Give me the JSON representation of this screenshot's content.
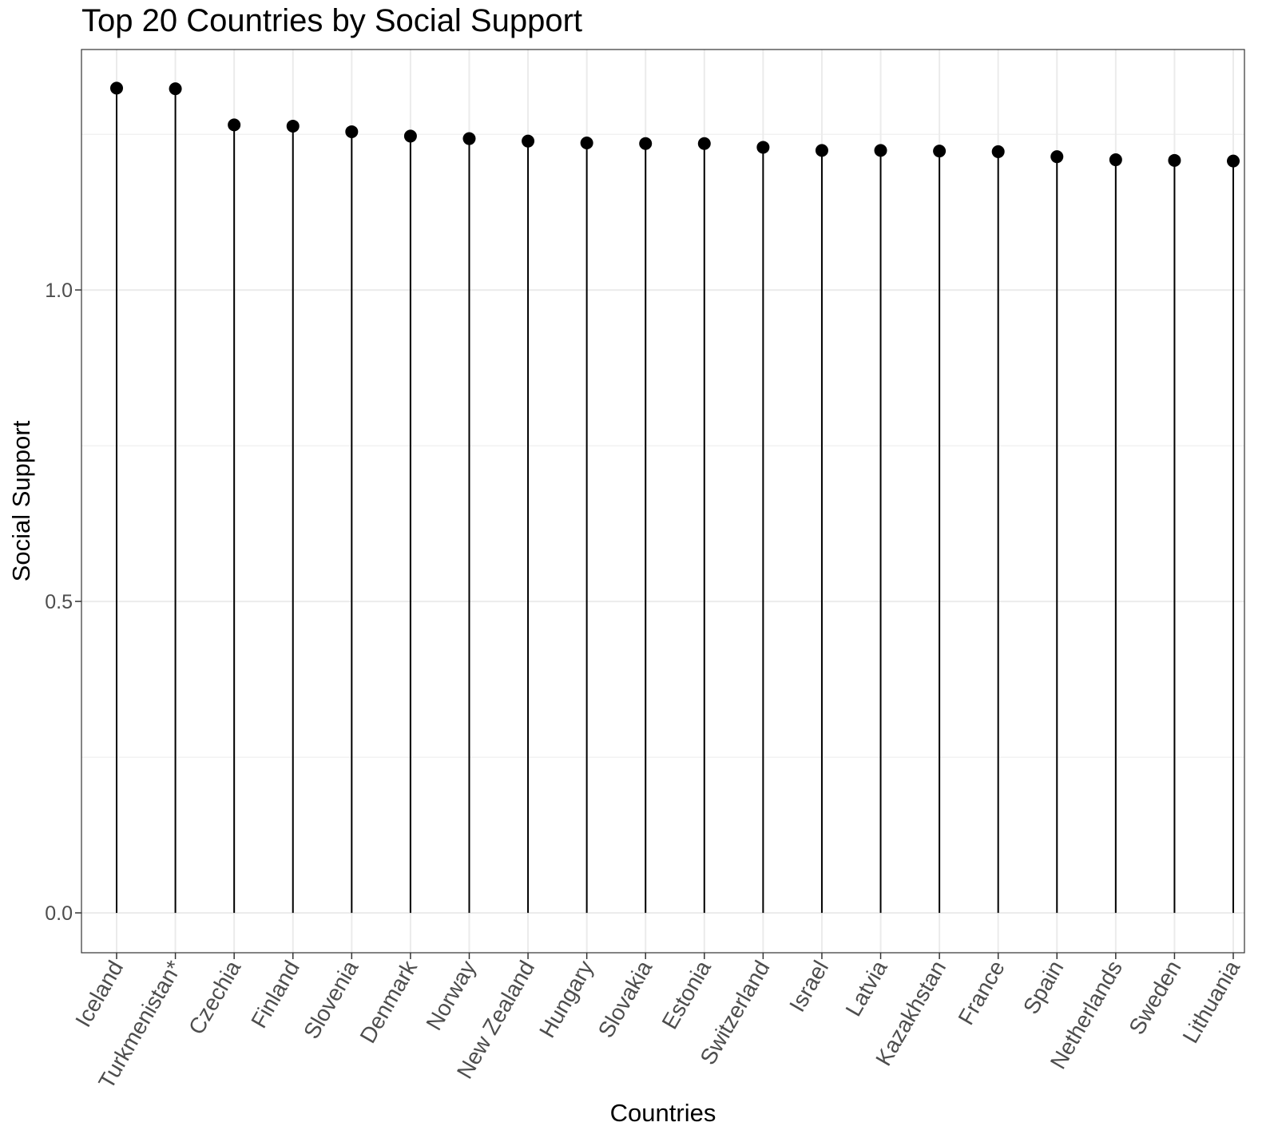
{
  "chart_data": {
    "type": "lollipop",
    "title": "Top 20 Countries by Social Support",
    "xlabel": "Countries",
    "ylabel": "Social Support",
    "categories": [
      "Iceland",
      "Turkmenistan*",
      "Czechia",
      "Finland",
      "Slovenia",
      "Denmark",
      "Norway",
      "New Zealand",
      "Hungary",
      "Slovakia",
      "Estonia",
      "Switzerland",
      "Israel",
      "Latvia",
      "Kazakhstan",
      "France",
      "Spain",
      "Netherlands",
      "Sweden",
      "Lithuania"
    ],
    "values": [
      1.324,
      1.323,
      1.265,
      1.263,
      1.254,
      1.247,
      1.243,
      1.239,
      1.236,
      1.235,
      1.235,
      1.229,
      1.224,
      1.224,
      1.223,
      1.222,
      1.214,
      1.209,
      1.208,
      1.207
    ],
    "ylim": [
      -0.064,
      1.386
    ],
    "yticks": [
      0.0,
      0.5,
      1.0
    ],
    "ytick_labels": [
      "0.0",
      "0.5",
      "1.0"
    ],
    "grid": true,
    "colors": {
      "stem": "#000000",
      "point": "#000000",
      "grid": "#ebebeb",
      "panel_border": "#333333",
      "tick_label": "#4d4d4d"
    }
  }
}
